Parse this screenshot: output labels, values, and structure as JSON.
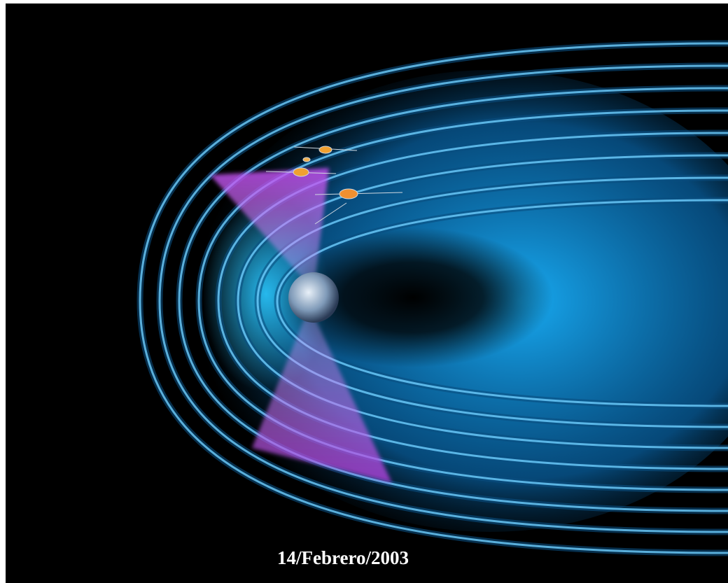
{
  "caption": "14/Febrero/2003"
}
